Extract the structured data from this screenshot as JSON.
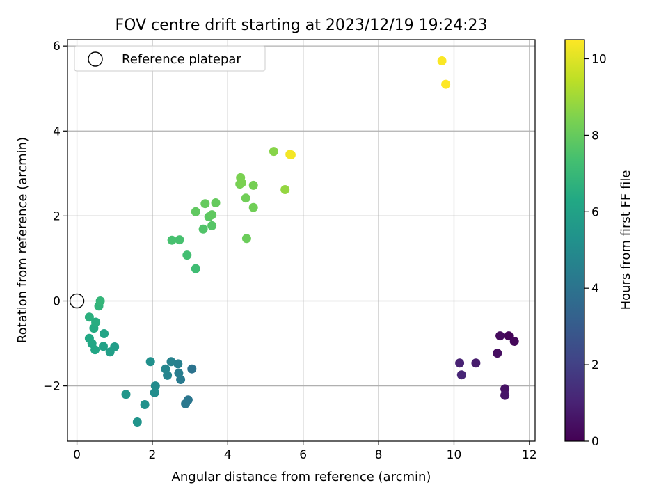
{
  "chart_data": {
    "type": "scatter",
    "title": "FOV centre drift starting at 2023/12/19 19:24:23",
    "xlabel": "Angular distance from reference (arcmin)",
    "ylabel": "Rotation from reference (arcmin)",
    "xlim": [
      -0.25,
      12.15
    ],
    "ylim": [
      -3.3,
      6.15
    ],
    "xticks": [
      0,
      2,
      4,
      6,
      8,
      10,
      12
    ],
    "yticks": [
      -2,
      0,
      2,
      4,
      6
    ],
    "xtick_labels": [
      "0",
      "2",
      "4",
      "6",
      "8",
      "10",
      "12"
    ],
    "ytick_labels": [
      "−2",
      "0",
      "2",
      "4",
      "6"
    ],
    "grid": true,
    "legend": {
      "placement": "top-left",
      "entries": [
        "Reference platepar"
      ]
    },
    "reference_point": {
      "x": 0,
      "y": 0
    },
    "colorbar": {
      "label": "Hours from first FF file",
      "range": [
        0,
        10.5
      ],
      "ticks": [
        0,
        2,
        4,
        6,
        8,
        10
      ],
      "tick_labels": [
        "0",
        "2",
        "4",
        "6",
        "8",
        "10"
      ],
      "colormap": "viridis"
    },
    "points": [
      {
        "x": 11.45,
        "y": -0.82,
        "c": 0.1
      },
      {
        "x": 11.6,
        "y": -0.95,
        "c": 0.2
      },
      {
        "x": 11.22,
        "y": -0.82,
        "c": 0.3
      },
      {
        "x": 11.15,
        "y": -1.23,
        "c": 0.4
      },
      {
        "x": 11.35,
        "y": -2.07,
        "c": 0.5
      },
      {
        "x": 11.35,
        "y": -2.22,
        "c": 0.6
      },
      {
        "x": 10.58,
        "y": -1.46,
        "c": 0.8
      },
      {
        "x": 10.15,
        "y": -1.46,
        "c": 1.0
      },
      {
        "x": 10.2,
        "y": -1.74,
        "c": 1.1
      },
      {
        "x": 3.05,
        "y": -1.6,
        "c": 4.0
      },
      {
        "x": 2.95,
        "y": -2.33,
        "c": 4.1
      },
      {
        "x": 2.88,
        "y": -2.42,
        "c": 4.2
      },
      {
        "x": 2.75,
        "y": -1.85,
        "c": 4.3
      },
      {
        "x": 2.7,
        "y": -1.7,
        "c": 4.4
      },
      {
        "x": 2.68,
        "y": -1.48,
        "c": 4.5
      },
      {
        "x": 2.5,
        "y": -1.43,
        "c": 4.6
      },
      {
        "x": 2.4,
        "y": -1.75,
        "c": 4.7
      },
      {
        "x": 2.35,
        "y": -1.6,
        "c": 4.8
      },
      {
        "x": 2.08,
        "y": -2.0,
        "c": 5.0
      },
      {
        "x": 2.06,
        "y": -2.16,
        "c": 5.1
      },
      {
        "x": 1.95,
        "y": -1.43,
        "c": 5.2
      },
      {
        "x": 1.8,
        "y": -2.44,
        "c": 5.3
      },
      {
        "x": 1.6,
        "y": -2.85,
        "c": 5.4
      },
      {
        "x": 1.3,
        "y": -2.2,
        "c": 5.5
      },
      {
        "x": 1.0,
        "y": -1.08,
        "c": 5.8
      },
      {
        "x": 0.88,
        "y": -1.2,
        "c": 5.9
      },
      {
        "x": 0.7,
        "y": -1.07,
        "c": 6.0
      },
      {
        "x": 0.72,
        "y": -0.77,
        "c": 6.1
      },
      {
        "x": 0.48,
        "y": -1.15,
        "c": 6.2
      },
      {
        "x": 0.4,
        "y": -1.0,
        "c": 6.2
      },
      {
        "x": 0.33,
        "y": -0.88,
        "c": 6.3
      },
      {
        "x": 0.45,
        "y": -0.64,
        "c": 6.4
      },
      {
        "x": 0.5,
        "y": -0.5,
        "c": 6.5
      },
      {
        "x": 0.33,
        "y": -0.38,
        "c": 6.6
      },
      {
        "x": 0.58,
        "y": -0.12,
        "c": 6.8
      },
      {
        "x": 0.62,
        "y": 0.0,
        "c": 6.9
      },
      {
        "x": 3.15,
        "y": 0.76,
        "c": 7.2
      },
      {
        "x": 2.92,
        "y": 1.08,
        "c": 7.3
      },
      {
        "x": 2.72,
        "y": 1.44,
        "c": 7.4
      },
      {
        "x": 2.52,
        "y": 1.43,
        "c": 7.4
      },
      {
        "x": 3.35,
        "y": 1.69,
        "c": 7.6
      },
      {
        "x": 3.58,
        "y": 1.77,
        "c": 7.7
      },
      {
        "x": 3.5,
        "y": 1.98,
        "c": 7.8
      },
      {
        "x": 3.58,
        "y": 2.03,
        "c": 7.9
      },
      {
        "x": 3.15,
        "y": 2.1,
        "c": 7.9
      },
      {
        "x": 3.4,
        "y": 2.29,
        "c": 8.0
      },
      {
        "x": 3.68,
        "y": 2.31,
        "c": 8.0
      },
      {
        "x": 4.5,
        "y": 1.47,
        "c": 8.1
      },
      {
        "x": 4.68,
        "y": 2.2,
        "c": 8.2
      },
      {
        "x": 4.48,
        "y": 2.42,
        "c": 8.2
      },
      {
        "x": 4.68,
        "y": 2.72,
        "c": 8.3
      },
      {
        "x": 4.32,
        "y": 2.75,
        "c": 8.3
      },
      {
        "x": 4.37,
        "y": 2.78,
        "c": 8.4
      },
      {
        "x": 4.34,
        "y": 2.9,
        "c": 8.4
      },
      {
        "x": 5.22,
        "y": 3.52,
        "c": 8.6
      },
      {
        "x": 5.52,
        "y": 2.62,
        "c": 8.8
      },
      {
        "x": 5.65,
        "y": 3.45,
        "c": 10.3
      },
      {
        "x": 5.68,
        "y": 3.44,
        "c": 10.35
      },
      {
        "x": 9.68,
        "y": 5.65,
        "c": 10.45
      },
      {
        "x": 9.78,
        "y": 5.1,
        "c": 10.5
      }
    ]
  }
}
